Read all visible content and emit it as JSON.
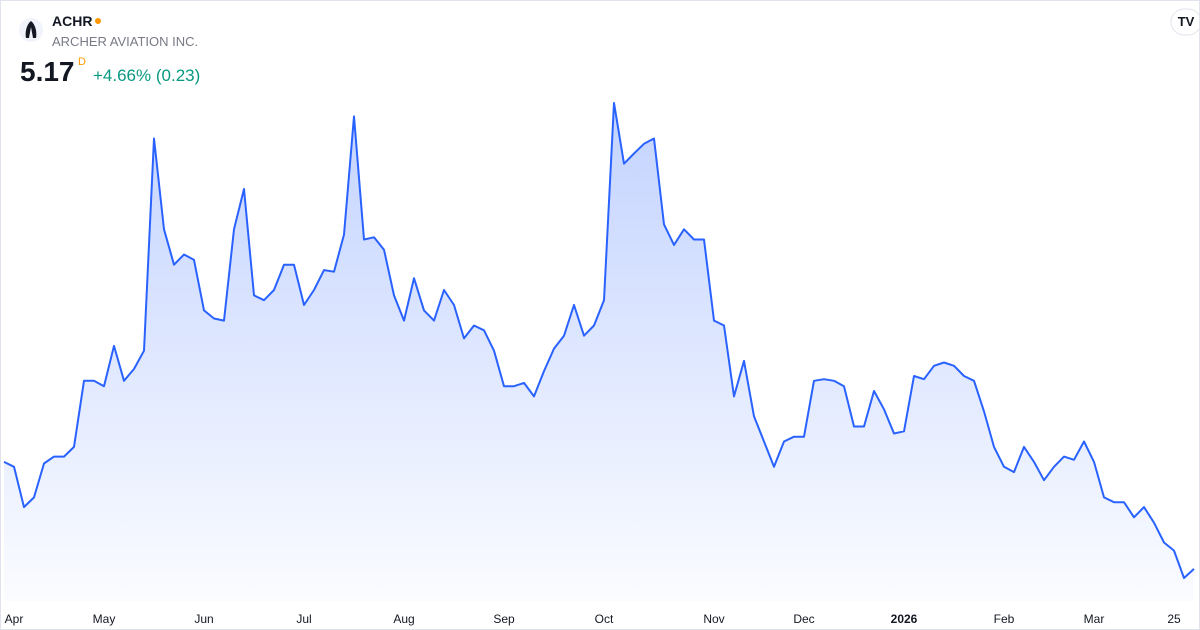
{
  "header": {
    "symbol": "ACHR",
    "name": "ARCHER AVIATION INC.",
    "price": 5.17,
    "interval": "D",
    "change": "+4.66%",
    "change_value": "(0.23)"
  },
  "chart_data": {
    "type": "area",
    "color": "#2962ff",
    "categories": [
      null,
      "Apr",
      null,
      null,
      null,
      null,
      null,
      null,
      null,
      null,
      "May",
      null,
      null,
      null,
      null,
      null,
      null,
      null,
      null,
      null,
      "Jun",
      null,
      null,
      null,
      null,
      null,
      null,
      null,
      null,
      null,
      "Jul",
      null,
      null,
      null,
      null,
      null,
      null,
      null,
      null,
      null,
      "Aug",
      null,
      null,
      null,
      null,
      null,
      null,
      null,
      null,
      null,
      "Sep",
      null,
      null,
      null,
      null,
      null,
      null,
      null,
      null,
      null,
      "Oct",
      null,
      null,
      null,
      null,
      null,
      null,
      null,
      null,
      null,
      null,
      "Nov",
      null,
      null,
      null,
      null,
      null,
      null,
      null,
      null,
      "Dec",
      null,
      null,
      null,
      null,
      null,
      null,
      null,
      null,
      null,
      "2026",
      null,
      null,
      null,
      null,
      null,
      null,
      null,
      null,
      null,
      "Feb",
      null,
      null,
      null,
      null,
      null,
      null,
      null,
      null,
      "Mar",
      null,
      null,
      null,
      null,
      null,
      null,
      null,
      "25",
      null,
      null
    ],
    "values": [
      7.16,
      7.07,
      6.32,
      6.5,
      7.13,
      7.26,
      7.26,
      7.44,
      8.67,
      8.67,
      8.57,
      9.32,
      8.67,
      8.89,
      9.23,
      13.18,
      11.49,
      10.83,
      11.02,
      10.92,
      9.98,
      9.83,
      9.79,
      11.49,
      12.24,
      10.26,
      10.17,
      10.36,
      10.83,
      10.83,
      10.08,
      10.36,
      10.73,
      10.7,
      11.39,
      13.59,
      11.3,
      11.34,
      11.11,
      10.26,
      9.79,
      10.58,
      9.98,
      9.79,
      10.36,
      10.08,
      9.46,
      9.7,
      9.61,
      9.23,
      8.57,
      8.57,
      8.63,
      8.38,
      8.85,
      9.27,
      9.51,
      10.08,
      9.51,
      9.7,
      10.17,
      13.84,
      12.71,
      12.9,
      13.08,
      13.18,
      11.58,
      11.2,
      11.49,
      11.3,
      11.3,
      9.79,
      9.7,
      8.38,
      9.04,
      8.01,
      7.54,
      7.07,
      7.54,
      7.63,
      7.63,
      8.67,
      8.7,
      8.67,
      8.57,
      7.82,
      7.82,
      8.48,
      8.14,
      7.69,
      7.73,
      8.76,
      8.7,
      8.95,
      9.01,
      8.95,
      8.76,
      8.67,
      8.1,
      7.44,
      7.07,
      6.97,
      7.44,
      7.16,
      6.82,
      7.07,
      7.26,
      7.2,
      7.54,
      7.16,
      6.5,
      6.41,
      6.41,
      6.13,
      6.32,
      6.03,
      5.66,
      5.51,
      5.0,
      5.17
    ]
  }
}
